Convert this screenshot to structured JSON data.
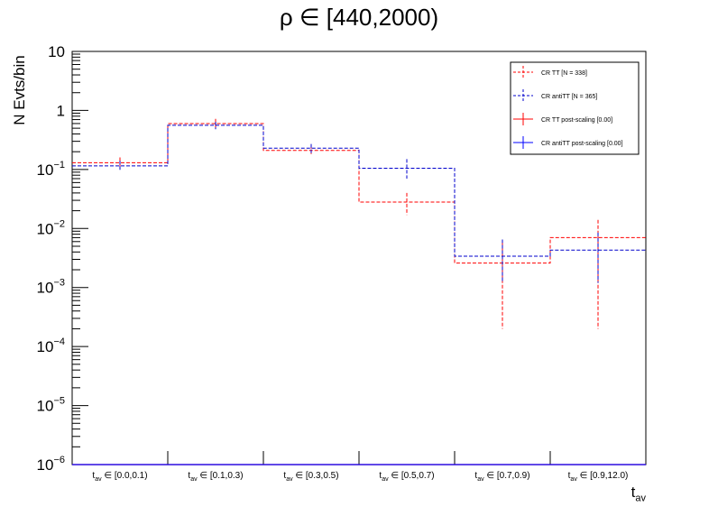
{
  "chart_data": {
    "type": "histogram",
    "title": "ρ ∈ [440,2000)",
    "ylabel": "N Evts/bin",
    "xlabel": {
      "main": "t",
      "sub": "av"
    },
    "yscale": "log",
    "ylim": [
      1e-06,
      10
    ],
    "yticks": [
      {
        "base": "10",
        "exp": "−6"
      },
      {
        "base": "10",
        "exp": "−5"
      },
      {
        "base": "10",
        "exp": "−4"
      },
      {
        "base": "10",
        "exp": "−3"
      },
      {
        "base": "10",
        "exp": "−2"
      },
      {
        "base": "10",
        "exp": "−1"
      },
      {
        "base": "1",
        "exp": ""
      },
      {
        "base": "10",
        "exp": ""
      }
    ],
    "categories": [
      {
        "sub": "av",
        "range": "[0.0,0.1)"
      },
      {
        "sub": "av",
        "range": "[0.1,0.3)"
      },
      {
        "sub": "av",
        "range": "[0.3,0.5)"
      },
      {
        "sub": "av",
        "range": "[0.5,0.7)"
      },
      {
        "sub": "av",
        "range": "[0.7,0.9)"
      },
      {
        "sub": "av",
        "range": "[0.9,12.0)"
      }
    ],
    "series": [
      {
        "name": "CR TT [N = 338]",
        "color": "#ff0000",
        "style": "dashed",
        "values": [
          0.13,
          0.6,
          0.21,
          0.028,
          0.0026,
          0.007
        ],
        "err_low": [
          0.1,
          0.5,
          0.17,
          0.017,
          0.0002,
          0.0002
        ],
        "err_high": [
          0.16,
          0.72,
          0.26,
          0.04,
          0.006,
          0.014
        ]
      },
      {
        "name": "CR antiTT [N = 365]",
        "color": "#0000cc",
        "style": "dashed",
        "values": [
          0.115,
          0.56,
          0.23,
          0.105,
          0.0034,
          0.0043
        ],
        "err_low": [
          0.095,
          0.48,
          0.19,
          0.07,
          0.0012,
          0.0012
        ],
        "err_high": [
          0.14,
          0.64,
          0.27,
          0.15,
          0.0065,
          0.0085
        ]
      },
      {
        "name": "CR TT post-scaling [0.00]",
        "color": "#ff0000",
        "style": "solid",
        "values": [
          0,
          0,
          0,
          0,
          0,
          0
        ]
      },
      {
        "name": "CR antiTT post-scaling [0.00]",
        "color": "#0000ff",
        "style": "solid",
        "values": [
          0,
          0,
          0,
          0,
          0,
          0
        ]
      }
    ],
    "legend_position": "top-right"
  }
}
